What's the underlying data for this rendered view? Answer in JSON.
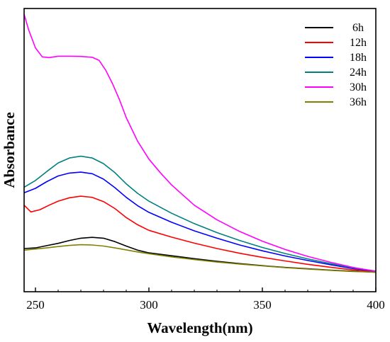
{
  "chart_data": {
    "type": "line",
    "title": "",
    "xlabel": "Wavelength(nm)",
    "ylabel": "Absorbance",
    "xlim": [
      245,
      400
    ],
    "ylim": [
      0,
      1.15
    ],
    "x_ticks": [
      250,
      300,
      350,
      400
    ],
    "y_ticks": [],
    "grid": false,
    "legend_position": "top-right",
    "series": [
      {
        "name": "6h",
        "color": "#000000",
        "points": [
          [
            245,
            0.107
          ],
          [
            250,
            0.11
          ],
          [
            255,
            0.12
          ],
          [
            260,
            0.13
          ],
          [
            265,
            0.143
          ],
          [
            270,
            0.153
          ],
          [
            275,
            0.157
          ],
          [
            280,
            0.153
          ],
          [
            285,
            0.138
          ],
          [
            290,
            0.118
          ],
          [
            295,
            0.1
          ],
          [
            300,
            0.088
          ],
          [
            310,
            0.075
          ],
          [
            320,
            0.062
          ],
          [
            330,
            0.05
          ],
          [
            340,
            0.04
          ],
          [
            350,
            0.031
          ],
          [
            360,
            0.023
          ],
          [
            370,
            0.017
          ],
          [
            380,
            0.011
          ],
          [
            390,
            0.006
          ],
          [
            400,
            0.002
          ]
        ]
      },
      {
        "name": "12h",
        "color": "#ff0000",
        "points": [
          [
            245,
            0.3
          ],
          [
            248,
            0.27
          ],
          [
            252,
            0.28
          ],
          [
            256,
            0.3
          ],
          [
            260,
            0.318
          ],
          [
            265,
            0.333
          ],
          [
            270,
            0.34
          ],
          [
            275,
            0.335
          ],
          [
            280,
            0.316
          ],
          [
            285,
            0.285
          ],
          [
            290,
            0.245
          ],
          [
            295,
            0.213
          ],
          [
            300,
            0.188
          ],
          [
            310,
            0.158
          ],
          [
            320,
            0.131
          ],
          [
            330,
            0.107
          ],
          [
            340,
            0.086
          ],
          [
            350,
            0.068
          ],
          [
            360,
            0.052
          ],
          [
            370,
            0.037
          ],
          [
            380,
            0.024
          ],
          [
            390,
            0.012
          ],
          [
            400,
            0.004
          ]
        ]
      },
      {
        "name": "18h",
        "color": "#0000ff",
        "points": [
          [
            245,
            0.355
          ],
          [
            250,
            0.375
          ],
          [
            255,
            0.405
          ],
          [
            260,
            0.43
          ],
          [
            265,
            0.443
          ],
          [
            270,
            0.447
          ],
          [
            275,
            0.44
          ],
          [
            280,
            0.416
          ],
          [
            285,
            0.378
          ],
          [
            290,
            0.335
          ],
          [
            295,
            0.298
          ],
          [
            300,
            0.268
          ],
          [
            310,
            0.224
          ],
          [
            320,
            0.186
          ],
          [
            330,
            0.153
          ],
          [
            340,
            0.123
          ],
          [
            350,
            0.097
          ],
          [
            360,
            0.074
          ],
          [
            370,
            0.054
          ],
          [
            380,
            0.035
          ],
          [
            390,
            0.018
          ],
          [
            400,
            0.006
          ]
        ]
      },
      {
        "name": "24h",
        "color": "#008080",
        "points": [
          [
            245,
            0.38
          ],
          [
            250,
            0.41
          ],
          [
            255,
            0.45
          ],
          [
            260,
            0.488
          ],
          [
            265,
            0.51
          ],
          [
            270,
            0.518
          ],
          [
            275,
            0.51
          ],
          [
            280,
            0.485
          ],
          [
            285,
            0.445
          ],
          [
            290,
            0.395
          ],
          [
            295,
            0.353
          ],
          [
            300,
            0.318
          ],
          [
            310,
            0.264
          ],
          [
            320,
            0.218
          ],
          [
            330,
            0.178
          ],
          [
            340,
            0.143
          ],
          [
            350,
            0.112
          ],
          [
            360,
            0.085
          ],
          [
            370,
            0.061
          ],
          [
            380,
            0.04
          ],
          [
            390,
            0.021
          ],
          [
            400,
            0.007
          ]
        ]
      },
      {
        "name": "30h",
        "color": "#ff00ff",
        "points": [
          [
            245,
            1.15
          ],
          [
            247,
            1.08
          ],
          [
            250,
            1.0
          ],
          [
            253,
            0.96
          ],
          [
            256,
            0.957
          ],
          [
            260,
            0.963
          ],
          [
            265,
            0.963
          ],
          [
            270,
            0.962
          ],
          [
            275,
            0.958
          ],
          [
            278,
            0.945
          ],
          [
            281,
            0.9
          ],
          [
            284,
            0.84
          ],
          [
            287,
            0.77
          ],
          [
            290,
            0.69
          ],
          [
            295,
            0.585
          ],
          [
            300,
            0.505
          ],
          [
            305,
            0.445
          ],
          [
            310,
            0.39
          ],
          [
            320,
            0.3
          ],
          [
            330,
            0.235
          ],
          [
            340,
            0.183
          ],
          [
            350,
            0.14
          ],
          [
            360,
            0.103
          ],
          [
            370,
            0.072
          ],
          [
            380,
            0.046
          ],
          [
            390,
            0.023
          ],
          [
            400,
            0.006
          ]
        ]
      },
      {
        "name": "36h",
        "color": "#808000",
        "points": [
          [
            245,
            0.1
          ],
          [
            250,
            0.105
          ],
          [
            255,
            0.11
          ],
          [
            260,
            0.116
          ],
          [
            265,
            0.121
          ],
          [
            270,
            0.124
          ],
          [
            275,
            0.123
          ],
          [
            280,
            0.118
          ],
          [
            285,
            0.11
          ],
          [
            290,
            0.101
          ],
          [
            295,
            0.092
          ],
          [
            300,
            0.084
          ],
          [
            310,
            0.07
          ],
          [
            320,
            0.058
          ],
          [
            330,
            0.047
          ],
          [
            340,
            0.038
          ],
          [
            350,
            0.03
          ],
          [
            360,
            0.022
          ],
          [
            370,
            0.016
          ],
          [
            380,
            0.01
          ],
          [
            390,
            0.005
          ],
          [
            400,
            0.002
          ]
        ]
      }
    ]
  }
}
